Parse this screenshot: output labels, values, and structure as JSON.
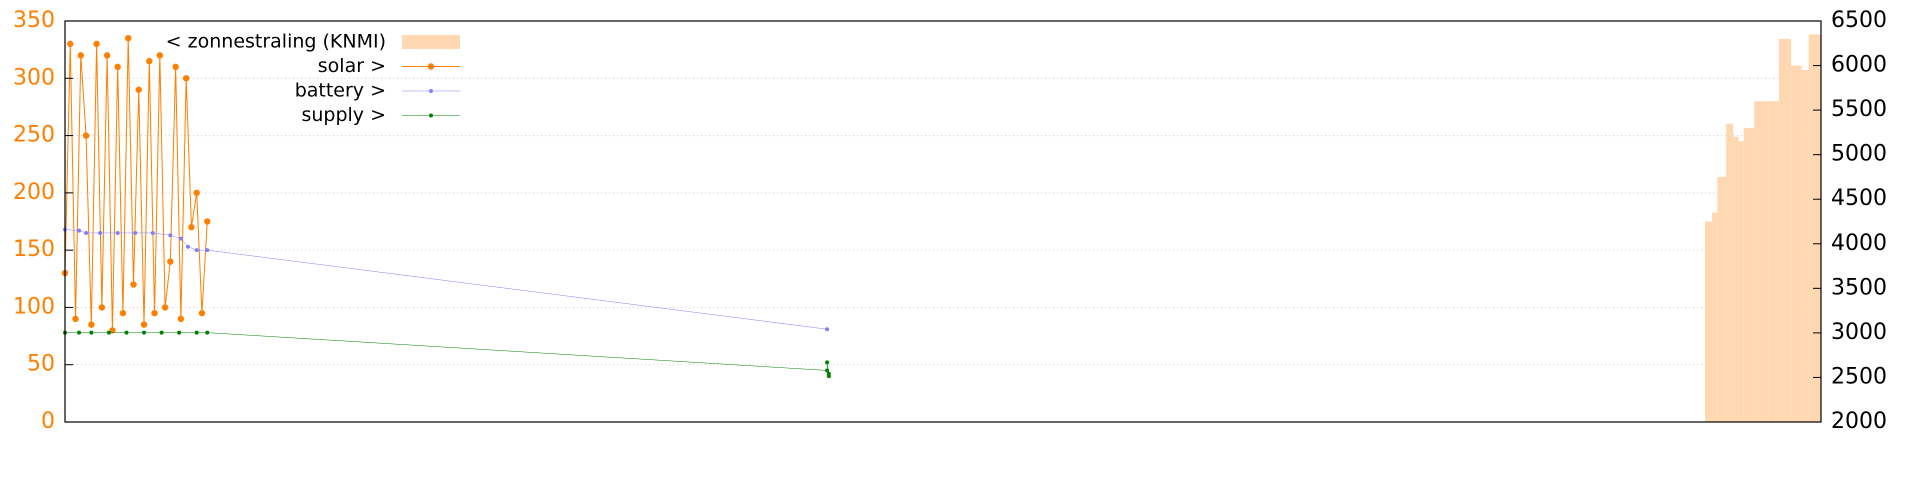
{
  "chart_data": {
    "type": "line",
    "xlim": [
      0,
      100
    ],
    "ylim": [
      0,
      350
    ],
    "yticks": [
      0,
      50,
      100,
      150,
      200,
      250,
      300,
      350
    ],
    "y2lim": [
      2000,
      6500
    ],
    "y2ticks": [
      2000,
      2500,
      3000,
      3500,
      4000,
      4500,
      5000,
      5500,
      6000,
      6500
    ],
    "grid": true,
    "legend": "top left",
    "series": [
      {
        "name": "< zonnestraling (KNMI)",
        "type": "step-bar",
        "axis": "y2",
        "color": "#ffd8b1",
        "x": [
          93.4,
          93.8,
          94.1,
          94.6,
          95.0,
          95.3,
          95.6,
          96.2,
          97.0,
          97.6,
          98.3,
          98.9,
          99.3
        ],
        "values": [
          4250,
          4350,
          4750,
          5350,
          5200,
          5150,
          5300,
          5600,
          5600,
          6300,
          6000,
          5950,
          6350
        ]
      },
      {
        "name": "solar >",
        "type": "linespoints",
        "color": "#ff7f00",
        "point_size": 3.2,
        "x": [
          0,
          0.3,
          0.6,
          0.9,
          1.2,
          1.5,
          1.8,
          2.1,
          2.4,
          2.7,
          3.0,
          3.3,
          3.6,
          3.9,
          4.2,
          4.5,
          4.8,
          5.1,
          5.4,
          5.7,
          6.0,
          6.3,
          6.6,
          6.9,
          7.2,
          7.5,
          7.8,
          8.1
        ],
        "values": [
          130,
          330,
          90,
          320,
          250,
          85,
          330,
          100,
          320,
          80,
          310,
          95,
          335,
          120,
          290,
          85,
          315,
          95,
          320,
          100,
          140,
          310,
          90,
          300,
          170,
          200,
          95,
          175
        ]
      },
      {
        "name": "battery >",
        "type": "linespoints",
        "color": "#8080ff",
        "point_size": 2,
        "x": [
          0,
          0.8,
          1.2,
          2.0,
          3.0,
          4.0,
          5.0,
          6.0,
          6.6,
          7.0,
          7.5,
          8.1,
          43.4
        ],
        "values": [
          168,
          167,
          165,
          165,
          165,
          165,
          165,
          163,
          160,
          153,
          150,
          150,
          81
        ]
      },
      {
        "name": "supply >",
        "type": "linespoints",
        "color": "#008000",
        "point_size": 2,
        "x": [
          0,
          0.8,
          1.5,
          2.5,
          3.5,
          4.5,
          5.5,
          6.5,
          7.5,
          8.1,
          43.4,
          43.4,
          43.5,
          43.5
        ],
        "values": [
          78,
          78,
          78,
          78,
          78,
          78,
          78,
          78,
          78,
          78,
          45,
          52,
          42,
          40
        ]
      }
    ]
  }
}
